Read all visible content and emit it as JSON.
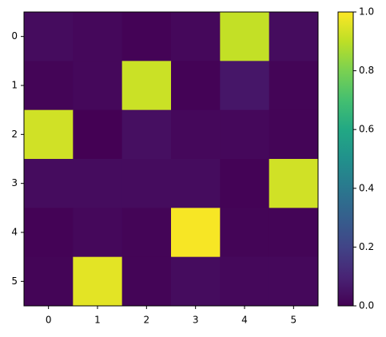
{
  "chart_data": {
    "type": "heatmap",
    "colormap": "viridis",
    "xticks": [
      0,
      1,
      2,
      3,
      4,
      5
    ],
    "yticks": [
      0,
      1,
      2,
      3,
      4,
      5
    ],
    "values": [
      [
        0.03,
        0.02,
        0.005,
        0.02,
        0.91,
        0.03
      ],
      [
        0.01,
        0.02,
        0.92,
        0.005,
        0.06,
        0.01
      ],
      [
        0.93,
        0.0,
        0.04,
        0.02,
        0.02,
        0.01
      ],
      [
        0.03,
        0.03,
        0.03,
        0.03,
        0.005,
        0.93
      ],
      [
        0.005,
        0.02,
        0.01,
        0.99,
        0.01,
        0.01
      ],
      [
        0.01,
        0.96,
        0.01,
        0.03,
        0.02,
        0.02
      ]
    ],
    "colorbar": {
      "lim": [
        0,
        1
      ],
      "ticks": [
        {
          "value": 0,
          "label": "0.0"
        },
        0.2,
        0.4,
        0.6,
        0.8,
        {
          "value": 1,
          "label": "1.0"
        }
      ]
    }
  }
}
